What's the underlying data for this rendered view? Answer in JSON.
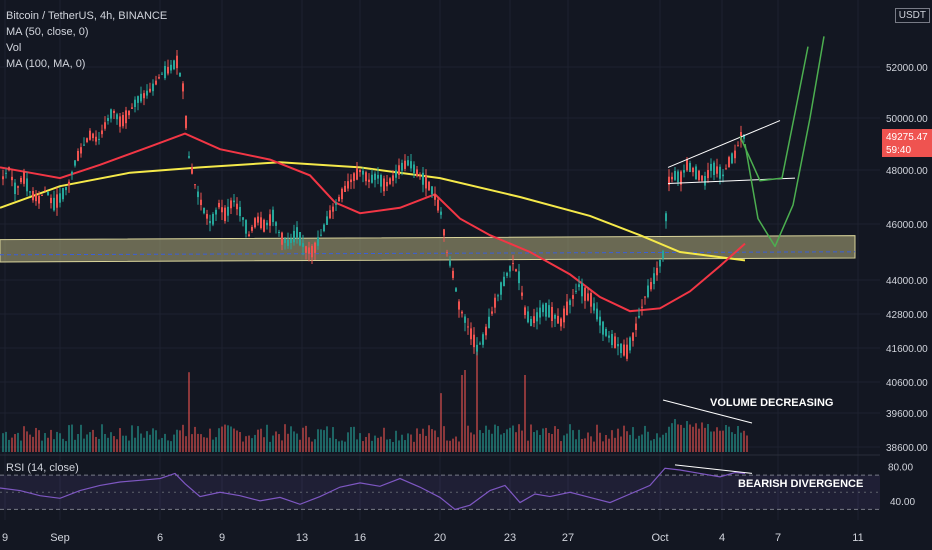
{
  "legend": {
    "title": "Bitcoin / TetherUS, 4h, BINANCE",
    "ma50": "MA (50, close, 0)",
    "vol": "Vol",
    "ma100": "MA (100, MA, 0)"
  },
  "currency": "USDT",
  "rsi_label": "RSI (14, close)",
  "price_tag": {
    "value": "49275.47",
    "countdown": "59:40"
  },
  "annotations": {
    "volume": "VOLUME DECREASING",
    "divergence": "BEARISH DIVERGENCE"
  },
  "colors": {
    "bg": "#131722",
    "up": "#26a69a",
    "down": "#ef5350",
    "ma50": "#f23645",
    "ma100": "#f5e94a",
    "projection": "#4caf50",
    "rsi": "#7e57c2",
    "zone": "#b3ad7c"
  },
  "chart_data": [
    {
      "type": "candlestick",
      "title": "Bitcoin / TetherUS, 4h, BINANCE",
      "y_axis_ticks": [
        52000,
        50000,
        48000,
        46000,
        44000,
        42800,
        41600,
        40600,
        39600,
        38600
      ],
      "y_axis_tick_labels": [
        "52000.00",
        "50000.00",
        "48000.00",
        "46000.00",
        "44000.00",
        "42800.00",
        "41600.00",
        "40600.00",
        "39600.00",
        "38600.00"
      ],
      "x_axis_tick_labels": [
        "9",
        "Sep",
        "6",
        "9",
        "13",
        "16",
        "20",
        "23",
        "27",
        "Oct",
        "4",
        "7",
        "11"
      ],
      "last_price": 49275.47,
      "path_points": [
        [
          0,
          47600
        ],
        [
          8,
          48050
        ],
        [
          15,
          47200
        ],
        [
          22,
          47800
        ],
        [
          30,
          47100
        ],
        [
          38,
          46900
        ],
        [
          45,
          47300
        ],
        [
          52,
          46700
        ],
        [
          60,
          47000
        ],
        [
          68,
          47500
        ],
        [
          75,
          48400
        ],
        [
          82,
          48900
        ],
        [
          90,
          49400
        ],
        [
          97,
          49100
        ],
        [
          105,
          49800
        ],
        [
          112,
          50300
        ],
        [
          120,
          49800
        ],
        [
          128,
          50200
        ],
        [
          136,
          50700
        ],
        [
          144,
          50900
        ],
        [
          152,
          51200
        ],
        [
          160,
          51700
        ],
        [
          168,
          51900
        ],
        [
          176,
          52200
        ],
        [
          182,
          51200
        ],
        [
          188,
          48500
        ],
        [
          195,
          47300
        ],
        [
          203,
          46500
        ],
        [
          210,
          46000
        ],
        [
          218,
          46700
        ],
        [
          225,
          46300
        ],
        [
          232,
          46900
        ],
        [
          240,
          46400
        ],
        [
          248,
          45600
        ],
        [
          256,
          46200
        ],
        [
          264,
          45900
        ],
        [
          272,
          46300
        ],
        [
          280,
          45500
        ],
        [
          288,
          45300
        ],
        [
          296,
          45700
        ],
        [
          304,
          45100
        ],
        [
          312,
          45000
        ],
        [
          320,
          45600
        ],
        [
          328,
          46300
        ],
        [
          336,
          46800
        ],
        [
          344,
          47300
        ],
        [
          352,
          47700
        ],
        [
          360,
          48000
        ],
        [
          368,
          47600
        ],
        [
          376,
          47800
        ],
        [
          384,
          47400
        ],
        [
          392,
          47700
        ],
        [
          400,
          48100
        ],
        [
          408,
          48300
        ],
        [
          416,
          47900
        ],
        [
          424,
          47600
        ],
        [
          432,
          47200
        ],
        [
          440,
          46400
        ],
        [
          446,
          45000
        ],
        [
          452,
          44200
        ],
        [
          458,
          43100
        ],
        [
          464,
          42600
        ],
        [
          470,
          42100
        ],
        [
          476,
          41600
        ],
        [
          482,
          41900
        ],
        [
          488,
          42500
        ],
        [
          494,
          43200
        ],
        [
          500,
          43700
        ],
        [
          506,
          44200
        ],
        [
          512,
          44600
        ],
        [
          518,
          44100
        ],
        [
          524,
          42900
        ],
        [
          530,
          42500
        ],
        [
          536,
          42700
        ],
        [
          542,
          43000
        ],
        [
          548,
          42900
        ],
        [
          554,
          42700
        ],
        [
          560,
          42500
        ],
        [
          566,
          43000
        ],
        [
          572,
          43400
        ],
        [
          578,
          43800
        ],
        [
          584,
          43500
        ],
        [
          590,
          43300
        ],
        [
          596,
          42800
        ],
        [
          602,
          42300
        ],
        [
          608,
          42000
        ],
        [
          614,
          41800
        ],
        [
          620,
          41600
        ],
        [
          626,
          41500
        ],
        [
          632,
          42000
        ],
        [
          638,
          42700
        ],
        [
          644,
          43400
        ],
        [
          650,
          43800
        ],
        [
          656,
          44300
        ],
        [
          662,
          44900
        ],
        [
          668,
          47600
        ],
        [
          674,
          47800
        ],
        [
          680,
          47700
        ],
        [
          686,
          48200
        ],
        [
          692,
          48000
        ],
        [
          698,
          47800
        ],
        [
          704,
          47600
        ],
        [
          710,
          48100
        ],
        [
          716,
          48000
        ],
        [
          722,
          47800
        ],
        [
          728,
          48300
        ],
        [
          734,
          48600
        ],
        [
          740,
          49300
        ],
        [
          745,
          49275
        ]
      ],
      "ma50_points": [
        [
          0,
          48100
        ],
        [
          30,
          47900
        ],
        [
          60,
          47700
        ],
        [
          100,
          48200
        ],
        [
          150,
          48900
        ],
        [
          185,
          49400
        ],
        [
          220,
          48800
        ],
        [
          270,
          48400
        ],
        [
          310,
          47800
        ],
        [
          335,
          46800
        ],
        [
          360,
          46400
        ],
        [
          400,
          46600
        ],
        [
          435,
          47100
        ],
        [
          460,
          46200
        ],
        [
          490,
          45600
        ],
        [
          530,
          45000
        ],
        [
          570,
          44200
        ],
        [
          600,
          43400
        ],
        [
          630,
          42900
        ],
        [
          660,
          43000
        ],
        [
          690,
          43600
        ],
        [
          720,
          44500
        ],
        [
          745,
          45300
        ]
      ],
      "ma100_points": [
        [
          0,
          46600
        ],
        [
          60,
          47400
        ],
        [
          130,
          47900
        ],
        [
          200,
          48100
        ],
        [
          280,
          48300
        ],
        [
          360,
          48100
        ],
        [
          440,
          47700
        ],
        [
          520,
          47000
        ],
        [
          590,
          46300
        ],
        [
          640,
          45600
        ],
        [
          680,
          45000
        ],
        [
          745,
          44700
        ]
      ],
      "support_zone": {
        "from": 44500,
        "to": 45300
      },
      "dashed_level": 44900,
      "projection_paths": [
        [
          [
            740,
            49300
          ],
          [
            760,
            47600
          ],
          [
            782,
            47700
          ],
          [
            795,
            50200
          ],
          [
            808,
            52800
          ]
        ],
        [
          [
            745,
            49000
          ],
          [
            758,
            46200
          ],
          [
            775,
            45200
          ],
          [
            793,
            46700
          ],
          [
            810,
            50000
          ],
          [
            824,
            53200
          ]
        ]
      ],
      "wedge_lines": [
        [
          [
            668,
            48100
          ],
          [
            780,
            49900
          ]
        ],
        [
          [
            668,
            47500
          ],
          [
            795,
            47700
          ]
        ]
      ]
    },
    {
      "type": "bar",
      "series_name": "Vol",
      "annotation": "VOLUME DECREASING"
    },
    {
      "type": "line",
      "series_name": "RSI (14, close)",
      "y_axis_tick_labels": [
        "80.00",
        "40.00"
      ],
      "ylim": [
        20,
        90
      ],
      "levels": [
        70,
        30
      ],
      "annotation": "BEARISH DIVERGENCE",
      "path_points": [
        [
          0,
          55
        ],
        [
          20,
          52
        ],
        [
          40,
          46
        ],
        [
          60,
          43
        ],
        [
          80,
          52
        ],
        [
          100,
          58
        ],
        [
          120,
          62
        ],
        [
          140,
          64
        ],
        [
          160,
          66
        ],
        [
          175,
          72
        ],
        [
          185,
          60
        ],
        [
          200,
          45
        ],
        [
          220,
          50
        ],
        [
          240,
          46
        ],
        [
          260,
          40
        ],
        [
          280,
          44
        ],
        [
          300,
          36
        ],
        [
          320,
          45
        ],
        [
          340,
          56
        ],
        [
          360,
          61
        ],
        [
          380,
          57
        ],
        [
          400,
          66
        ],
        [
          420,
          56
        ],
        [
          440,
          44
        ],
        [
          455,
          30
        ],
        [
          470,
          35
        ],
        [
          490,
          52
        ],
        [
          505,
          58
        ],
        [
          520,
          38
        ],
        [
          535,
          48
        ],
        [
          550,
          45
        ],
        [
          570,
          50
        ],
        [
          590,
          44
        ],
        [
          610,
          38
        ],
        [
          630,
          48
        ],
        [
          650,
          58
        ],
        [
          665,
          78
        ],
        [
          680,
          76
        ],
        [
          700,
          72
        ],
        [
          720,
          68
        ],
        [
          735,
          73
        ],
        [
          745,
          72
        ]
      ]
    }
  ]
}
